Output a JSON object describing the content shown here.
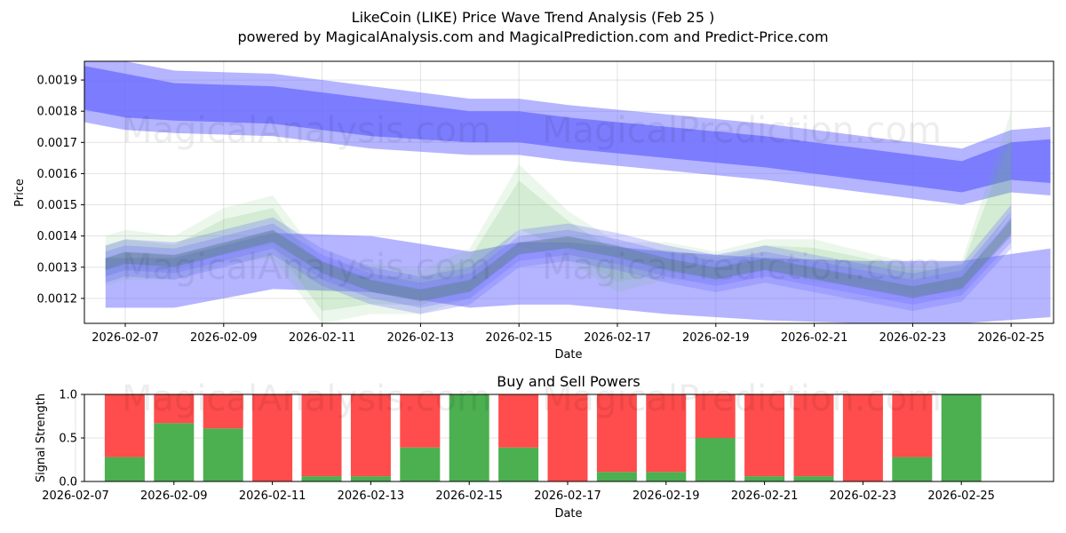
{
  "header": {
    "title": "LikeCoin (LIKE) Price Wave Trend Analysis (Feb 25 )",
    "subtitle": "powered by MagicalAnalysis.com and MagicalPrediction.com and Predict-Price.com"
  },
  "watermarks": {
    "left": "MagicalAnalysis.com",
    "right": "MagicalPrediction.com"
  },
  "colors": {
    "blue_band": "#6a6aff",
    "green_band": "#66bb66",
    "buy": "#4caf50",
    "sell": "#ff4c4c"
  },
  "chart_data": [
    {
      "type": "area",
      "title": "",
      "xlabel": "Date",
      "ylabel": "Price",
      "ylim": [
        0.00112,
        0.00196
      ],
      "xlim": [
        "2026-02-05.8",
        "2026-02-25.9"
      ],
      "grid": true,
      "yticks": [
        "0.0012",
        "0.0013",
        "0.0014",
        "0.0015",
        "0.0016",
        "0.0017",
        "0.0018",
        "0.0019"
      ],
      "xticks": [
        "2026-02-07",
        "2026-02-09",
        "2026-02-11",
        "2026-02-13",
        "2026-02-15",
        "2026-02-17",
        "2026-02-19",
        "2026-02-21",
        "2026-02-23",
        "2026-02-25"
      ],
      "upper_trend": {
        "x": [
          6.0,
          7.0,
          8.0,
          10.0,
          12.0,
          14.0,
          15.0,
          16.0,
          18.0,
          20.0,
          22.0,
          24.0,
          25.0,
          25.8
        ],
        "center": [
          0.00188,
          0.00185,
          0.00183,
          0.00182,
          0.00178,
          0.00175,
          0.00175,
          0.00173,
          0.0017,
          0.00167,
          0.00163,
          0.00159,
          0.00164,
          0.00164
        ],
        "inner_half": [
          7e-05,
          7e-05,
          6e-05,
          6e-05,
          6e-05,
          5e-05,
          5e-05,
          5e-05,
          5e-05,
          5e-05,
          5e-05,
          5e-05,
          6e-05,
          7e-05
        ],
        "outer_half": [
          0.00011,
          0.00011,
          0.0001,
          0.0001,
          0.0001,
          9e-05,
          9e-05,
          9e-05,
          9e-05,
          9e-05,
          9e-05,
          9e-05,
          0.0001,
          0.00011
        ]
      },
      "lower_trend": {
        "x": [
          6.6,
          8.0,
          10.0,
          12.0,
          14.0,
          15.0,
          16.0,
          18.0,
          20.0,
          22.0,
          24.0,
          25.8
        ],
        "center": [
          0.00125,
          0.00125,
          0.00132,
          0.00131,
          0.00126,
          0.00128,
          0.00128,
          0.00125,
          0.00123,
          0.00122,
          0.00122,
          0.00125
        ],
        "half": [
          8e-05,
          8e-05,
          9e-05,
          9e-05,
          9e-05,
          0.0001,
          0.0001,
          0.0001,
          0.0001,
          0.0001,
          0.0001,
          0.00011
        ]
      },
      "wave_band": {
        "x": [
          6.6,
          7.0,
          8.0,
          9.0,
          10.0,
          11.0,
          12.0,
          13.0,
          14.0,
          15.0,
          16.0,
          17.0,
          18.0,
          19.0,
          20.0,
          21.0,
          22.0,
          23.0,
          24.0,
          25.0
        ],
        "center": [
          0.00131,
          0.00133,
          0.00132,
          0.00136,
          0.0014,
          0.0013,
          0.00124,
          0.00121,
          0.00124,
          0.00136,
          0.00138,
          0.00135,
          0.00131,
          0.00128,
          0.00131,
          0.00128,
          0.00125,
          0.00122,
          0.00125,
          0.00143
        ],
        "half": [
          4e-05,
          4e-05,
          4e-05,
          4e-05,
          4e-05,
          4e-05,
          4e-05,
          4e-05,
          4e-05,
          4e-05,
          4e-05,
          4e-05,
          4e-05,
          4e-05,
          4e-05,
          4e-05,
          4e-05,
          4e-05,
          4e-05,
          5e-05
        ]
      },
      "green_spread": {
        "x": [
          6.6,
          7.0,
          8.0,
          9.0,
          10.0,
          11.0,
          12.0,
          13.0,
          14.0,
          15.0,
          16.0,
          17.0,
          18.0,
          19.0,
          20.0,
          21.0,
          22.0,
          23.0,
          24.0,
          25.0
        ],
        "center": [
          0.00132,
          0.00134,
          0.00133,
          0.0014,
          0.00143,
          0.00122,
          0.00123,
          0.00122,
          0.00128,
          0.0015,
          0.0014,
          0.0013,
          0.00132,
          0.0013,
          0.00134,
          0.00132,
          0.0013,
          0.00126,
          0.00127,
          0.0016
        ],
        "half": [
          8e-05,
          8e-05,
          7e-05,
          9e-05,
          0.0001,
          0.0001,
          8e-05,
          7e-05,
          8e-05,
          0.00013,
          8e-05,
          8e-05,
          6e-05,
          5e-05,
          5e-05,
          7e-05,
          5e-05,
          5e-05,
          5e-05,
          0.0002
        ]
      }
    },
    {
      "type": "bar",
      "title": "Buy and Sell Powers",
      "xlabel": "Date",
      "ylabel": "Signal Strength",
      "ylim": [
        0,
        1
      ],
      "yticks": [
        "0.0",
        "0.5",
        "1.0"
      ],
      "xticks": [
        "2026-02-07",
        "2026-02-09",
        "2026-02-11",
        "2026-02-13",
        "2026-02-15",
        "2026-02-17",
        "2026-02-19",
        "2026-02-21",
        "2026-02-23",
        "2026-02-25"
      ],
      "categories": [
        "2026-02-08",
        "2026-02-09",
        "2026-02-10",
        "2026-02-11",
        "2026-02-12",
        "2026-02-13",
        "2026-02-14",
        "2026-02-15",
        "2026-02-16",
        "2026-02-17",
        "2026-02-18",
        "2026-02-19",
        "2026-02-20",
        "2026-02-21",
        "2026-02-22",
        "2026-02-23",
        "2026-02-24",
        "2026-02-25"
      ],
      "series": [
        {
          "name": "Buy",
          "values": [
            0.28,
            0.67,
            0.61,
            0.0,
            0.06,
            0.06,
            0.39,
            1.0,
            0.39,
            0.0,
            0.11,
            0.11,
            0.5,
            0.06,
            0.06,
            0.0,
            0.28,
            1.0
          ]
        },
        {
          "name": "Sell",
          "values": [
            0.72,
            0.33,
            0.39,
            1.0,
            0.94,
            0.94,
            0.61,
            0.0,
            0.61,
            1.0,
            0.89,
            0.89,
            0.5,
            0.94,
            0.94,
            1.0,
            0.72,
            0.0
          ]
        }
      ]
    }
  ]
}
